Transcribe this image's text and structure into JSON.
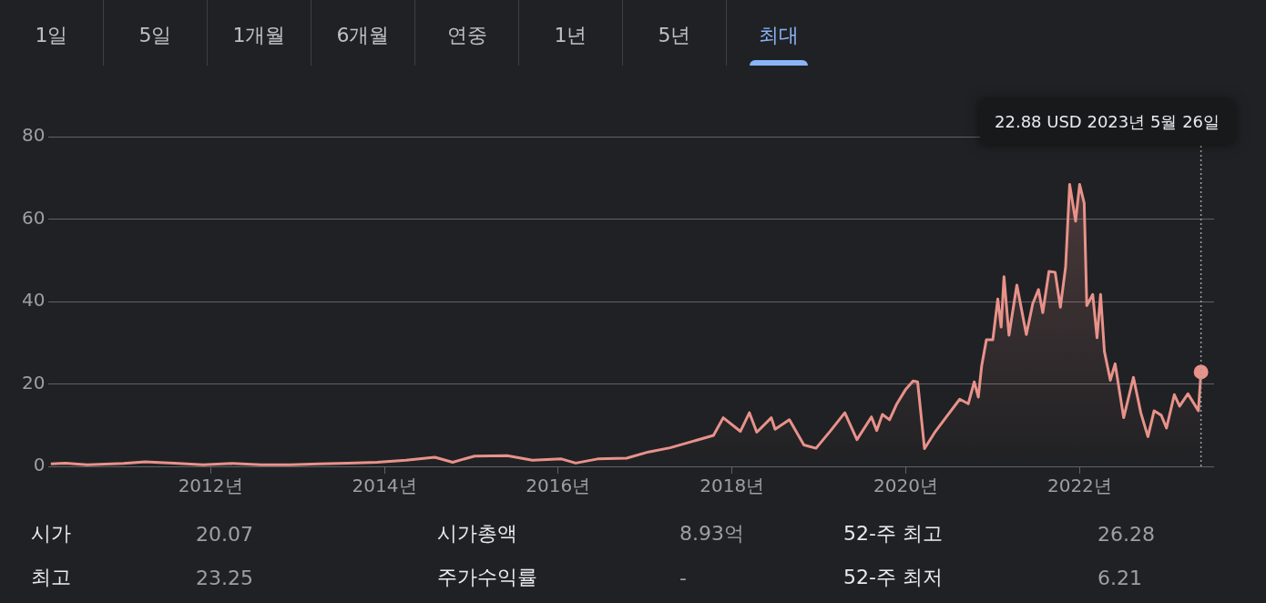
{
  "chart_data": {
    "type": "area",
    "x": [
      "2010-03-01",
      "2010-05-01",
      "2010-08-01",
      "2011-01-01",
      "2011-04-01",
      "2011-08-01",
      "2011-12-01",
      "2012-04-01",
      "2012-08-01",
      "2012-12-01",
      "2013-04-01",
      "2013-08-01",
      "2013-12-01",
      "2014-04-01",
      "2014-08-01",
      "2014-10-15",
      "2015-01-15",
      "2015-06-01",
      "2015-09-15",
      "2016-01-15",
      "2016-03-15",
      "2016-06-15",
      "2016-10-15",
      "2017-01-15",
      "2017-04-15",
      "2017-07-15",
      "2017-10-15",
      "2017-11-25",
      "2018-02-05",
      "2018-03-15",
      "2018-04-15",
      "2018-06-15",
      "2018-07-01",
      "2018-08-30",
      "2018-10-30",
      "2018-12-20",
      "2019-02-20",
      "2019-04-20",
      "2019-06-10",
      "2019-08-10",
      "2019-09-01",
      "2019-09-25",
      "2019-10-25",
      "2019-11-25",
      "2020-01-01",
      "2020-02-01",
      "2020-02-20",
      "2020-03-20",
      "2020-05-05",
      "2020-06-25",
      "2020-08-15",
      "2020-09-20",
      "2020-10-15",
      "2020-11-01",
      "2020-11-15",
      "2020-12-05",
      "2021-01-01",
      "2021-01-22",
      "2021-02-05",
      "2021-02-17",
      "2021-03-10",
      "2021-04-12",
      "2021-05-22",
      "2021-06-18",
      "2021-07-12",
      "2021-07-30",
      "2021-08-25",
      "2021-09-20",
      "2021-10-12",
      "2021-11-03",
      "2021-11-20",
      "2021-12-15",
      "2022-01-01",
      "2022-01-20",
      "2022-01-31",
      "2022-02-25",
      "2022-03-15",
      "2022-03-30",
      "2022-04-15",
      "2022-05-10",
      "2022-05-30",
      "2022-07-05",
      "2022-08-15",
      "2022-09-15",
      "2022-10-15",
      "2022-11-10",
      "2022-12-10",
      "2023-01-01",
      "2023-02-03",
      "2023-02-25",
      "2023-04-01",
      "2023-05-15",
      "2023-05-26"
    ],
    "values": [
      0.6,
      0.8,
      0.4,
      0.7,
      1.1,
      0.8,
      0.4,
      0.7,
      0.4,
      0.4,
      0.6,
      0.8,
      1.0,
      1.5,
      2.2,
      1.0,
      2.5,
      2.6,
      1.5,
      1.8,
      0.8,
      1.8,
      2.0,
      3.5,
      4.5,
      6.0,
      7.5,
      11.8,
      8.5,
      13,
      8.3,
      11.8,
      9,
      11.3,
      5.2,
      4.4,
      8.7,
      13,
      6.5,
      12,
      8.7,
      12.6,
      11.3,
      15.2,
      18.7,
      20.7,
      20.5,
      4.3,
      8.5,
      12.4,
      16.3,
      15.2,
      20.5,
      16.8,
      24.3,
      30.7,
      30.7,
      40.6,
      33.8,
      46,
      31.8,
      44,
      32,
      39.5,
      42.9,
      37.3,
      47.3,
      47.1,
      38.6,
      48.4,
      68.4,
      59.5,
      68.4,
      63.9,
      39,
      41.7,
      31.2,
      41.7,
      27.9,
      20.9,
      24.9,
      11.8,
      21.6,
      13,
      7.2,
      13.5,
      12.4,
      9.3,
      17.4,
      14.6,
      17.6,
      13.5,
      22.88
    ],
    "color": "#e8928a",
    "xlim": [
      "2010-02-20",
      "2023-07-20"
    ],
    "xticks": [
      {
        "value": "2012-01-01",
        "label": "2012년"
      },
      {
        "value": "2014-01-01",
        "label": "2014년"
      },
      {
        "value": "2016-01-01",
        "label": "2016년"
      },
      {
        "value": "2018-01-01",
        "label": "2018년"
      },
      {
        "value": "2020-01-01",
        "label": "2020년"
      },
      {
        "value": "2022-01-01",
        "label": "2022년"
      }
    ],
    "ylim": [
      0,
      80
    ],
    "yticks": [
      0,
      20,
      40,
      60,
      80
    ],
    "grid": "y",
    "ref_lines": [
      {
        "axis": "x",
        "value": "2023-05-26",
        "line_style": "dotted",
        "color": "#9aa0a6"
      }
    ],
    "annotations": [
      "22.88 USD  2023년 5월 26일",
      "1일",
      "5일",
      "1개월",
      "6개월",
      "연중",
      "1년",
      "5년",
      "최대",
      "시가",
      "20.07",
      "시가총액",
      "8.93억",
      "52-주 최고",
      "26.28",
      "최고",
      "23.25",
      "주가수익률",
      "-",
      "52-주 최저",
      "6.21"
    ]
  }
}
